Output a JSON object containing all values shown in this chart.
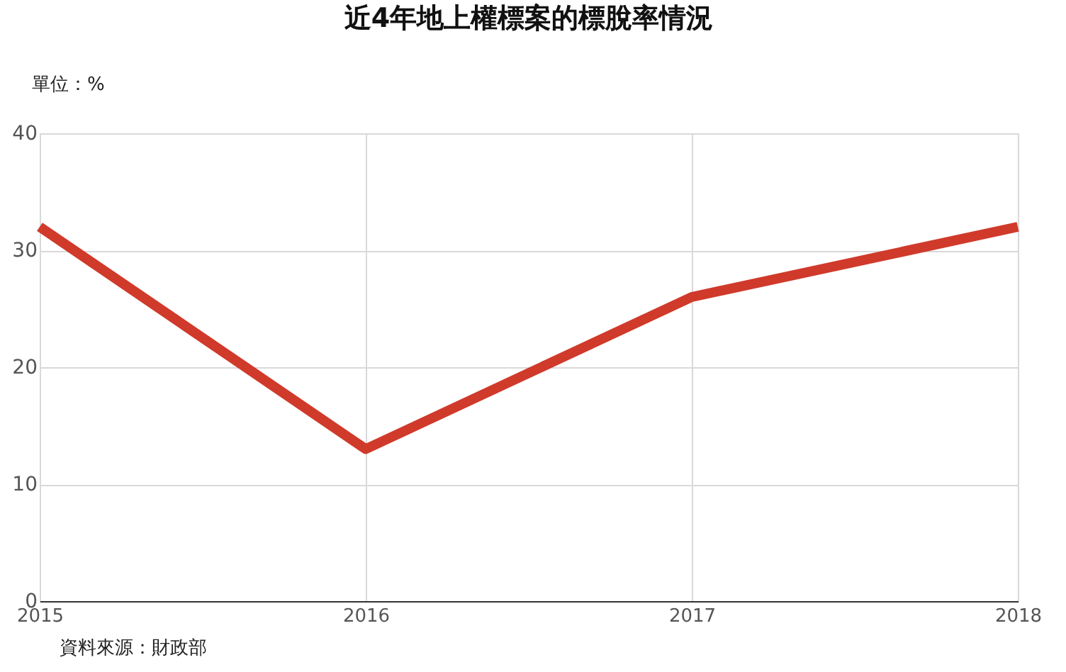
{
  "chart_data": {
    "type": "line",
    "title": "近4年地上權標案的標脫率情況",
    "ylabel": "單位：%",
    "categories": [
      "2015",
      "2016",
      "2017",
      "2018"
    ],
    "series": [
      {
        "color": "#d03a2b",
        "values": [
          32,
          13,
          26,
          32
        ]
      }
    ],
    "ylim": [
      0,
      40
    ],
    "yticks": [
      0,
      10,
      20,
      30,
      40
    ],
    "grid": true,
    "legend": false,
    "marker": "none",
    "line_style": "solid",
    "annotations": [
      "資料來源：財政部"
    ]
  }
}
